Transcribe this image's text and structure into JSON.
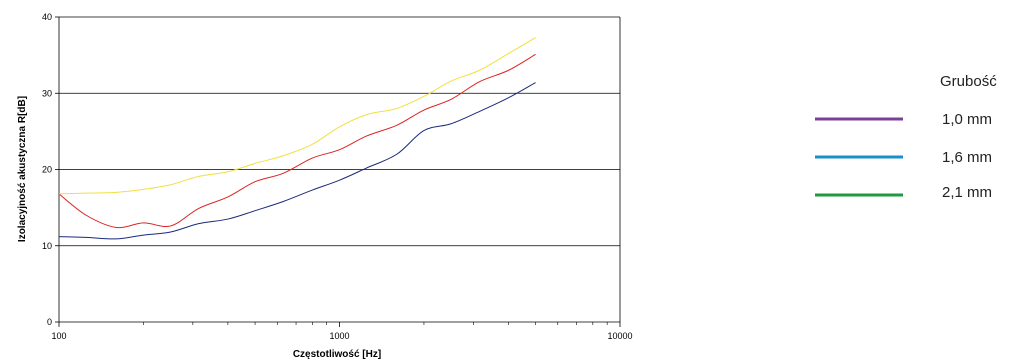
{
  "chart_data": {
    "type": "line",
    "x_scale": "log",
    "xlim": [
      100,
      10000
    ],
    "ylim": [
      0,
      40
    ],
    "x_ticks": [
      100,
      1000,
      10000
    ],
    "y_ticks": [
      0,
      10,
      20,
      30,
      40
    ],
    "x_tick_labels": [
      "100",
      "1000",
      "10000"
    ],
    "y_tick_labels": [
      "0",
      "10",
      "20",
      "30",
      "40"
    ],
    "xlabel": "Częstotliwość [Hz]",
    "ylabel": "Izolacyjność akustyczna R[dB]",
    "grid": "horizontal",
    "series": [
      {
        "color": "#1a2a7a",
        "points": [
          [
            100,
            11.2
          ],
          [
            125,
            11.1
          ],
          [
            160,
            10.9
          ],
          [
            200,
            11.4
          ],
          [
            250,
            11.8
          ],
          [
            315,
            12.9
          ],
          [
            400,
            13.5
          ],
          [
            500,
            14.6
          ],
          [
            630,
            15.8
          ],
          [
            800,
            17.3
          ],
          [
            1000,
            18.6
          ],
          [
            1250,
            20.2
          ],
          [
            1600,
            22.0
          ],
          [
            2000,
            25.1
          ],
          [
            2500,
            26.0
          ],
          [
            3150,
            27.6
          ],
          [
            4000,
            29.4
          ],
          [
            5000,
            31.4
          ]
        ]
      },
      {
        "color": "#dd2222",
        "points": [
          [
            100,
            16.8
          ],
          [
            125,
            14.0
          ],
          [
            160,
            12.4
          ],
          [
            200,
            13.0
          ],
          [
            250,
            12.6
          ],
          [
            315,
            14.9
          ],
          [
            400,
            16.4
          ],
          [
            500,
            18.4
          ],
          [
            630,
            19.5
          ],
          [
            800,
            21.5
          ],
          [
            1000,
            22.6
          ],
          [
            1250,
            24.4
          ],
          [
            1600,
            25.8
          ],
          [
            2000,
            27.8
          ],
          [
            2500,
            29.2
          ],
          [
            3150,
            31.5
          ],
          [
            4000,
            33.0
          ],
          [
            5000,
            35.1
          ]
        ]
      },
      {
        "color": "#f0e040",
        "points": [
          [
            100,
            16.8
          ],
          [
            125,
            16.9
          ],
          [
            160,
            17.0
          ],
          [
            200,
            17.4
          ],
          [
            250,
            18.0
          ],
          [
            315,
            19.1
          ],
          [
            400,
            19.7
          ],
          [
            500,
            20.8
          ],
          [
            630,
            21.8
          ],
          [
            800,
            23.3
          ],
          [
            1000,
            25.6
          ],
          [
            1250,
            27.2
          ],
          [
            1600,
            28.0
          ],
          [
            2000,
            29.6
          ],
          [
            2500,
            31.6
          ],
          [
            3150,
            33.0
          ],
          [
            4000,
            35.2
          ],
          [
            5000,
            37.3
          ]
        ]
      }
    ]
  },
  "legend": {
    "title": "Grubość",
    "items": [
      {
        "label": "1,0 mm",
        "color": "#7b3f98"
      },
      {
        "label": "1,6 mm",
        "color": "#1a8fc9"
      },
      {
        "label": "2,1 mm",
        "color": "#1f9a3c"
      }
    ]
  }
}
